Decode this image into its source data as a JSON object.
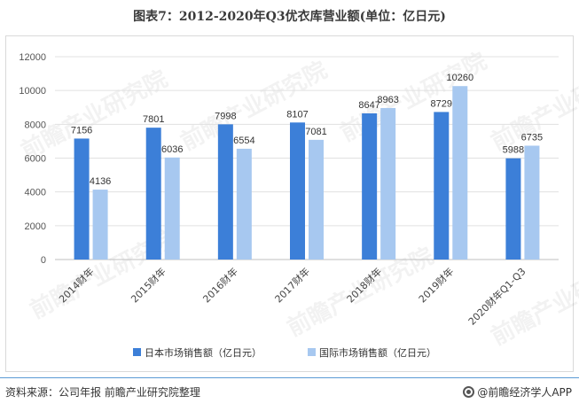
{
  "chart_data": {
    "type": "bar",
    "title": "图表7：2012-2020年Q3优衣库营业额(单位：亿日元)",
    "categories": [
      "2014财年",
      "2015财年",
      "2016财年",
      "2017财年",
      "2018财年",
      "2019财年",
      "2020财年Q1-Q3"
    ],
    "series": [
      {
        "name": "日本市场销售额（亿日元）",
        "values": [
          7156,
          7801,
          7998,
          8107,
          8647,
          8729,
          5988
        ],
        "color": "#3c7fd8"
      },
      {
        "name": "国际市场销售额（亿日元）",
        "values": [
          4136,
          6036,
          6554,
          7081,
          8963,
          10260,
          6735
        ],
        "color": "#a7c8f0"
      }
    ],
    "ylim": [
      0,
      12000
    ],
    "yticks": [
      0,
      2000,
      4000,
      6000,
      8000,
      10000,
      12000
    ],
    "grid": true,
    "legend": "bottom",
    "xlabel": "",
    "ylabel": ""
  },
  "footer": {
    "source": "资料来源：公司年报  前瞻产业研究院整理",
    "brand": "@前瞻经济学人APP"
  },
  "watermark": {
    "text": "前瞻产业研究院"
  }
}
